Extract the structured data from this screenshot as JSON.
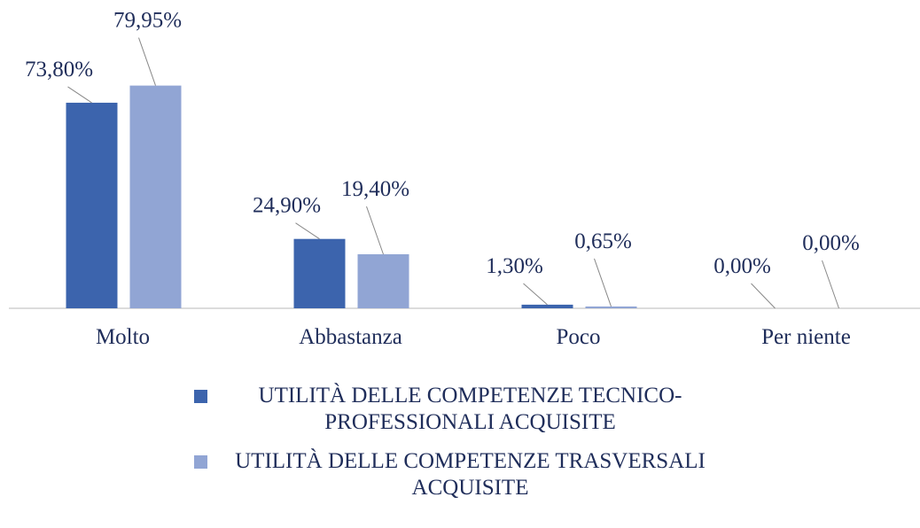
{
  "chart_data": {
    "type": "bar",
    "categories": [
      "Molto",
      "Abbastanza",
      "Poco",
      "Per niente"
    ],
    "series": [
      {
        "name": "UTILITÀ DELLE COMPETENZE TECNICO-PROFESSIONALI ACQUISITE",
        "color": "#3c64ad",
        "values": [
          73.8,
          24.9,
          1.3,
          0
        ],
        "value_labels": [
          "73,80%",
          "24,90%",
          "1,30%",
          "0,00%"
        ]
      },
      {
        "name": "UTILITÀ DELLE COMPETENZE TRASVERSALI ACQUISITE",
        "color": "#91a5d4",
        "values": [
          79.95,
          19.4,
          0.65,
          0
        ],
        "value_labels": [
          "79,95%",
          "19,40%",
          "0,65%",
          "0,00%"
        ]
      }
    ],
    "ylim": [
      0,
      90
    ],
    "legend": "bottom"
  }
}
